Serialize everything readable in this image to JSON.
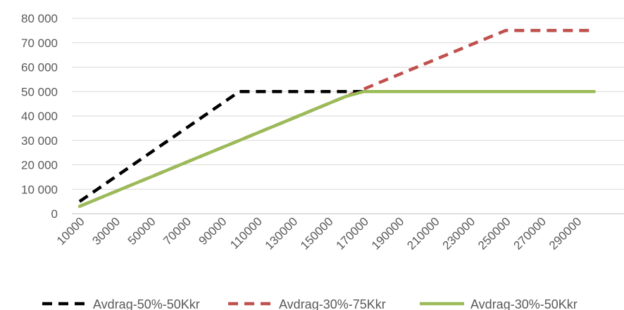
{
  "chart_data": {
    "type": "line",
    "title": "",
    "xlabel": "",
    "ylabel": "",
    "x": [
      10000,
      20000,
      30000,
      40000,
      50000,
      60000,
      70000,
      80000,
      90000,
      100000,
      110000,
      120000,
      130000,
      140000,
      150000,
      160000,
      170000,
      180000,
      190000,
      200000,
      210000,
      220000,
      230000,
      240000,
      250000,
      260000,
      270000,
      280000,
      290000,
      300000
    ],
    "x_tick_labels": [
      "10000",
      "30000",
      "50000",
      "70000",
      "90000",
      "110000",
      "130000",
      "150000",
      "170000",
      "190000",
      "210000",
      "230000",
      "250000",
      "270000",
      "290000"
    ],
    "ylim": [
      0,
      80000
    ],
    "y_ticks": [
      0,
      10000,
      20000,
      30000,
      40000,
      50000,
      60000,
      70000,
      80000
    ],
    "y_tick_labels": [
      "0",
      "10 000",
      "20 000",
      "30 000",
      "40 000",
      "50 000",
      "60 000",
      "70 000",
      "80 000"
    ],
    "grid": true,
    "legend_position": "bottom",
    "series": [
      {
        "name": "Avdrag-50%-50Kkr",
        "color": "#000000",
        "dash": "dashed",
        "values": [
          5000,
          10000,
          15000,
          20000,
          25000,
          30000,
          35000,
          40000,
          45000,
          50000,
          50000,
          50000,
          50000,
          50000,
          50000,
          50000,
          50000,
          50000,
          50000,
          50000,
          50000,
          50000,
          50000,
          50000,
          50000,
          50000,
          50000,
          50000,
          50000,
          50000
        ]
      },
      {
        "name": "Avdrag-30%-75Kkr",
        "color": "#C0504D",
        "dash": "dashed",
        "values": [
          3000,
          6000,
          9000,
          12000,
          15000,
          18000,
          21000,
          24000,
          27000,
          30000,
          33000,
          36000,
          39000,
          42000,
          45000,
          48000,
          51000,
          54000,
          57000,
          60000,
          63000,
          66000,
          69000,
          72000,
          75000,
          75000,
          75000,
          75000,
          75000,
          75000
        ]
      },
      {
        "name": "Avdrag-30%-50Kkr",
        "color": "#9BBB59",
        "dash": "solid",
        "values": [
          3000,
          6000,
          9000,
          12000,
          15000,
          18000,
          21000,
          24000,
          27000,
          30000,
          33000,
          36000,
          39000,
          42000,
          45000,
          48000,
          50000,
          50000,
          50000,
          50000,
          50000,
          50000,
          50000,
          50000,
          50000,
          50000,
          50000,
          50000,
          50000,
          50000
        ]
      }
    ]
  }
}
